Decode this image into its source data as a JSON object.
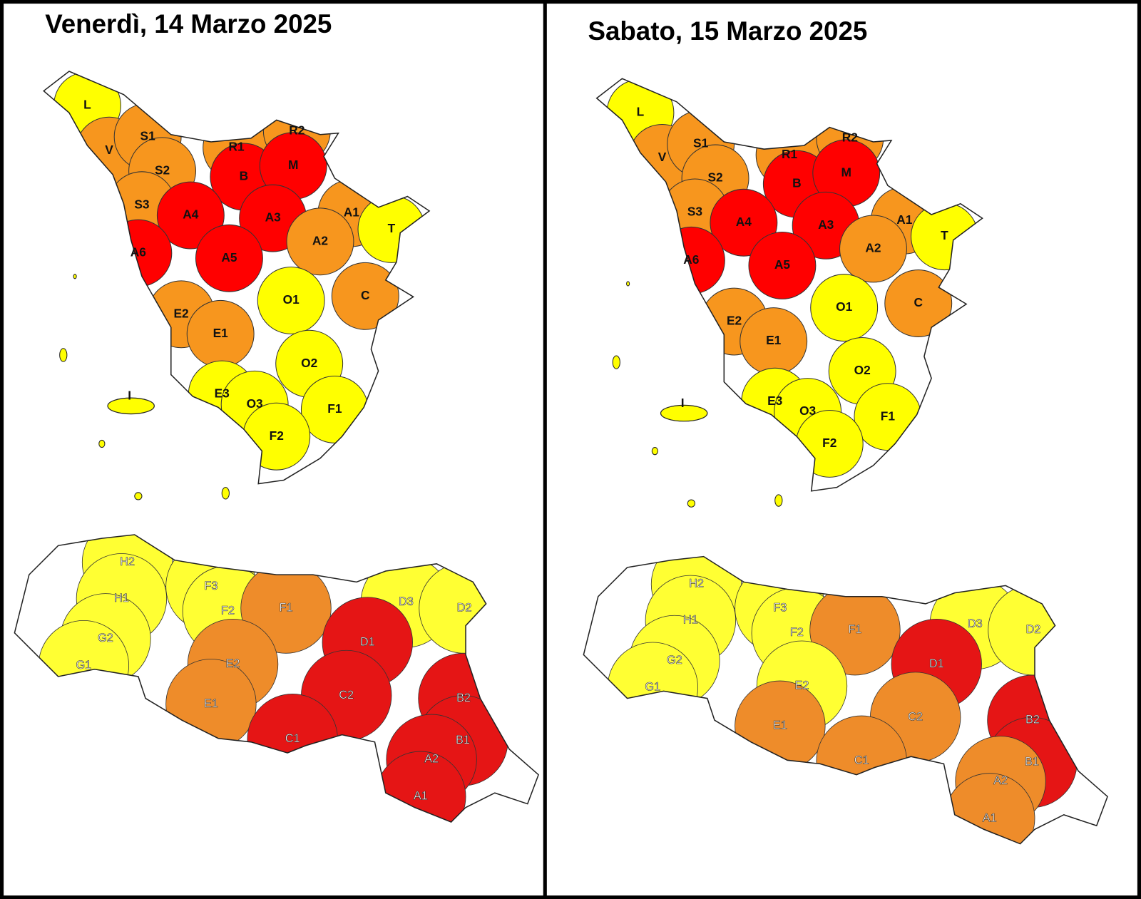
{
  "panels": [
    {
      "title": "Venerdì, 14 Marzo 2025",
      "tuscany": [
        {
          "label": "L",
          "color": "#ffff00"
        },
        {
          "label": "V",
          "color": "#f7961e"
        },
        {
          "label": "S1",
          "color": "#f7961e"
        },
        {
          "label": "S2",
          "color": "#f7961e"
        },
        {
          "label": "S3",
          "color": "#f7961e"
        },
        {
          "label": "R1",
          "color": "#f7961e"
        },
        {
          "label": "R2",
          "color": "#f7961e"
        },
        {
          "label": "B",
          "color": "#ff0000"
        },
        {
          "label": "M",
          "color": "#ff0000"
        },
        {
          "label": "A4",
          "color": "#ff0000"
        },
        {
          "label": "A3",
          "color": "#ff0000"
        },
        {
          "label": "A5",
          "color": "#ff0000"
        },
        {
          "label": "A6",
          "color": "#ff0000"
        },
        {
          "label": "A1",
          "color": "#f7961e"
        },
        {
          "label": "A2",
          "color": "#f7961e"
        },
        {
          "label": "T",
          "color": "#ffff00"
        },
        {
          "label": "O1",
          "color": "#ffff00"
        },
        {
          "label": "C",
          "color": "#f7961e"
        },
        {
          "label": "E2",
          "color": "#f7961e"
        },
        {
          "label": "E1",
          "color": "#f7961e"
        },
        {
          "label": "O2",
          "color": "#ffff00"
        },
        {
          "label": "E3",
          "color": "#ffff00"
        },
        {
          "label": "O3",
          "color": "#ffff00"
        },
        {
          "label": "F1",
          "color": "#ffff00"
        },
        {
          "label": "F2",
          "color": "#ffff00"
        },
        {
          "label": "I",
          "color": "#ffff00"
        }
      ],
      "emilia": [
        {
          "label": "H2",
          "color": "#ffff33"
        },
        {
          "label": "H1",
          "color": "#ffff33"
        },
        {
          "label": "G2",
          "color": "#ffff33"
        },
        {
          "label": "G1",
          "color": "#ffff33"
        },
        {
          "label": "F3",
          "color": "#ffff33"
        },
        {
          "label": "F2",
          "color": "#ffff33"
        },
        {
          "label": "F1",
          "color": "#ee8c2a"
        },
        {
          "label": "D3",
          "color": "#ffff33"
        },
        {
          "label": "D2",
          "color": "#ffff33"
        },
        {
          "label": "E2",
          "color": "#ee8c2a"
        },
        {
          "label": "E1",
          "color": "#ee8c2a"
        },
        {
          "label": "D1",
          "color": "#e51515"
        },
        {
          "label": "C2",
          "color": "#e51515"
        },
        {
          "label": "C1",
          "color": "#e51515"
        },
        {
          "label": "B2",
          "color": "#e51515"
        },
        {
          "label": "B1",
          "color": "#e51515"
        },
        {
          "label": "A2",
          "color": "#e51515"
        },
        {
          "label": "A1",
          "color": "#e51515"
        }
      ]
    },
    {
      "title": "Sabato, 15 Marzo 2025",
      "tuscany": [
        {
          "label": "L",
          "color": "#ffff00"
        },
        {
          "label": "V",
          "color": "#f7961e"
        },
        {
          "label": "S1",
          "color": "#f7961e"
        },
        {
          "label": "S2",
          "color": "#f7961e"
        },
        {
          "label": "S3",
          "color": "#f7961e"
        },
        {
          "label": "R1",
          "color": "#f7961e"
        },
        {
          "label": "R2",
          "color": "#f7961e"
        },
        {
          "label": "B",
          "color": "#ff0000"
        },
        {
          "label": "M",
          "color": "#ff0000"
        },
        {
          "label": "A4",
          "color": "#ff0000"
        },
        {
          "label": "A3",
          "color": "#ff0000"
        },
        {
          "label": "A5",
          "color": "#ff0000"
        },
        {
          "label": "A6",
          "color": "#ff0000"
        },
        {
          "label": "A1",
          "color": "#f7961e"
        },
        {
          "label": "A2",
          "color": "#f7961e"
        },
        {
          "label": "T",
          "color": "#ffff00"
        },
        {
          "label": "O1",
          "color": "#ffff00"
        },
        {
          "label": "C",
          "color": "#f7961e"
        },
        {
          "label": "E2",
          "color": "#f7961e"
        },
        {
          "label": "E1",
          "color": "#f7961e"
        },
        {
          "label": "O2",
          "color": "#ffff00"
        },
        {
          "label": "E3",
          "color": "#ffff00"
        },
        {
          "label": "O3",
          "color": "#ffff00"
        },
        {
          "label": "F1",
          "color": "#ffff00"
        },
        {
          "label": "F2",
          "color": "#ffff00"
        },
        {
          "label": "I",
          "color": "#ffff00"
        }
      ],
      "emilia": [
        {
          "label": "H2",
          "color": "#ffff33"
        },
        {
          "label": "H1",
          "color": "#ffff33"
        },
        {
          "label": "G2",
          "color": "#ffff33"
        },
        {
          "label": "G1",
          "color": "#ffff33"
        },
        {
          "label": "F3",
          "color": "#ffff33"
        },
        {
          "label": "F2",
          "color": "#ffff33"
        },
        {
          "label": "F1",
          "color": "#ee8c2a"
        },
        {
          "label": "D3",
          "color": "#ffff33"
        },
        {
          "label": "D2",
          "color": "#ffff33"
        },
        {
          "label": "E2",
          "color": "#ffff33"
        },
        {
          "label": "E1",
          "color": "#ee8c2a"
        },
        {
          "label": "D1",
          "color": "#e51515"
        },
        {
          "label": "C2",
          "color": "#ee8c2a"
        },
        {
          "label": "C1",
          "color": "#ee8c2a"
        },
        {
          "label": "B2",
          "color": "#e51515"
        },
        {
          "label": "B1",
          "color": "#e51515"
        },
        {
          "label": "A2",
          "color": "#ee8c2a"
        },
        {
          "label": "A1",
          "color": "#ee8c2a"
        }
      ]
    }
  ]
}
